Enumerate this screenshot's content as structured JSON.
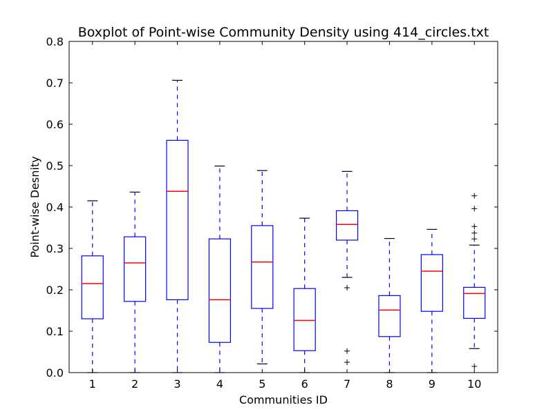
{
  "chart_data": {
    "type": "boxplot",
    "title": "Boxplot of Point-wise Community Density using 414_circles.txt",
    "xlabel": "Communities ID",
    "ylabel": "Point-wise Desnity",
    "ylim": [
      0,
      0.8
    ],
    "yticks": [
      "0.0",
      "0.1",
      "0.2",
      "0.3",
      "0.4",
      "0.5",
      "0.6",
      "0.7",
      "0.8"
    ],
    "grid": false,
    "colors": {
      "box": "#0000ff",
      "whisker": "#0000ff",
      "cap": "#000000",
      "median": "#ff0000",
      "flier": "#000000"
    },
    "categories": [
      "1",
      "2",
      "3",
      "4",
      "5",
      "6",
      "7",
      "8",
      "9",
      "10"
    ],
    "boxes": [
      {
        "whisker_low": 0.0,
        "q1": 0.13,
        "median": 0.215,
        "q3": 0.282,
        "whisker_high": 0.415,
        "outliers": []
      },
      {
        "whisker_low": 0.0,
        "q1": 0.172,
        "median": 0.265,
        "q3": 0.328,
        "whisker_high": 0.436,
        "outliers": []
      },
      {
        "whisker_low": 0.0,
        "q1": 0.176,
        "median": 0.438,
        "q3": 0.561,
        "whisker_high": 0.706,
        "outliers": []
      },
      {
        "whisker_low": 0.0,
        "q1": 0.073,
        "median": 0.176,
        "q3": 0.323,
        "whisker_high": 0.499,
        "outliers": []
      },
      {
        "whisker_low": 0.021,
        "q1": 0.155,
        "median": 0.267,
        "q3": 0.355,
        "whisker_high": 0.488,
        "outliers": []
      },
      {
        "whisker_low": 0.0,
        "q1": 0.053,
        "median": 0.126,
        "q3": 0.203,
        "whisker_high": 0.373,
        "outliers": []
      },
      {
        "whisker_low": 0.23,
        "q1": 0.32,
        "median": 0.358,
        "q3": 0.391,
        "whisker_high": 0.486,
        "outliers": [
          0.205,
          0.052,
          0.025
        ]
      },
      {
        "whisker_low": 0.0,
        "q1": 0.087,
        "median": 0.151,
        "q3": 0.186,
        "whisker_high": 0.324,
        "outliers": []
      },
      {
        "whisker_low": 0.0,
        "q1": 0.148,
        "median": 0.245,
        "q3": 0.285,
        "whisker_high": 0.346,
        "outliers": []
      },
      {
        "whisker_low": 0.058,
        "q1": 0.131,
        "median": 0.191,
        "q3": 0.206,
        "whisker_high": 0.308,
        "outliers": [
          0.427,
          0.396,
          0.353,
          0.337,
          0.323,
          0.015
        ]
      }
    ]
  }
}
